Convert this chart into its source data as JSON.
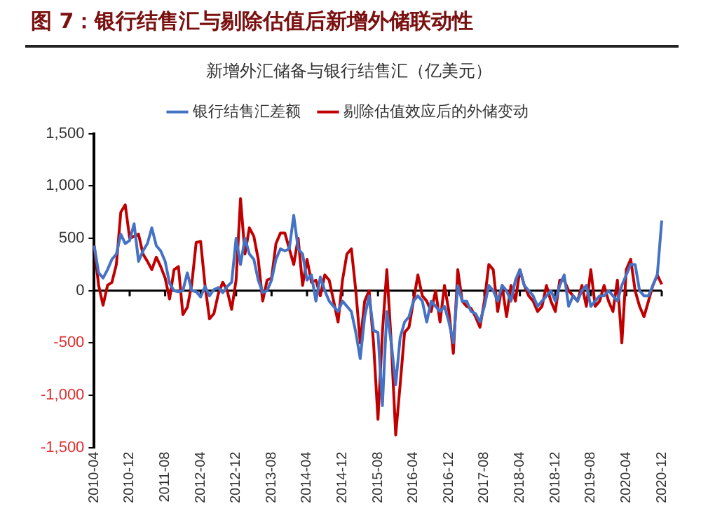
{
  "chart_data": {
    "type": "line",
    "title": "图 7：银行结售汇与剔除估值后新增外储联动性",
    "subtitle": "新增外汇储备与银行结售汇（亿美元）",
    "categories": [
      "2010-04",
      null,
      null,
      null,
      null,
      null,
      null,
      null,
      "2010-12",
      null,
      null,
      null,
      null,
      null,
      null,
      null,
      "2011-08",
      null,
      null,
      null,
      null,
      null,
      null,
      null,
      "2012-04",
      null,
      null,
      null,
      null,
      null,
      null,
      null,
      "2012-12",
      null,
      null,
      null,
      null,
      null,
      null,
      null,
      "2013-08",
      null,
      null,
      null,
      null,
      null,
      null,
      null,
      "2014-04",
      null,
      null,
      null,
      null,
      null,
      null,
      null,
      "2014-12",
      null,
      null,
      null,
      null,
      null,
      null,
      null,
      "2015-08",
      null,
      null,
      null,
      null,
      null,
      null,
      null,
      "2016-04",
      null,
      null,
      null,
      null,
      null,
      null,
      null,
      "2016-12",
      null,
      null,
      null,
      null,
      null,
      null,
      null,
      "2017-08",
      null,
      null,
      null,
      null,
      null,
      null,
      null,
      "2018-04",
      null,
      null,
      null,
      null,
      null,
      null,
      null,
      "2018-12",
      null,
      null,
      null,
      null,
      null,
      null,
      null,
      "2019-08",
      null,
      null,
      null,
      null,
      null,
      null,
      null,
      "2020-04",
      null,
      null,
      null,
      null,
      null,
      null,
      null,
      "2020-12"
    ],
    "series": [
      {
        "name": "银行结售汇差额",
        "color": "#4472c4",
        "values": [
          430,
          170,
          120,
          200,
          300,
          350,
          540,
          450,
          480,
          640,
          280,
          380,
          450,
          600,
          430,
          380,
          280,
          70,
          0,
          -10,
          0,
          170,
          0,
          -10,
          -60,
          40,
          -50,
          10,
          30,
          -20,
          40,
          80,
          500,
          250,
          500,
          350,
          300,
          100,
          -20,
          0,
          100,
          300,
          400,
          380,
          400,
          720,
          400,
          350,
          100,
          150,
          -100,
          130,
          0,
          -100,
          -150,
          -200,
          -100,
          -150,
          -200,
          -400,
          -650,
          -250,
          -50,
          -380,
          -400,
          -1100,
          -200,
          -500,
          -900,
          -450,
          -300,
          -250,
          -100,
          -50,
          -100,
          -300,
          -100,
          -150,
          -200,
          -150,
          -300,
          -500,
          50,
          -100,
          -100,
          -200,
          -220,
          -300,
          -150,
          50,
          0,
          -100,
          50,
          0,
          -100,
          100,
          200,
          50,
          0,
          -50,
          -150,
          -100,
          -50,
          0,
          -100,
          50,
          150,
          -150,
          -50,
          -100,
          0,
          50,
          -150,
          -100,
          -50,
          -50,
          0,
          -50,
          -100,
          50,
          150,
          250,
          250,
          0,
          -50,
          -50,
          50,
          150,
          670
        ]
      },
      {
        "name": "剔除估值效应后的外储变动",
        "color": "#c00000",
        "values": [
          430,
          50,
          -140,
          50,
          80,
          250,
          750,
          820,
          500,
          520,
          540,
          350,
          280,
          200,
          320,
          230,
          120,
          -80,
          200,
          230,
          -230,
          -160,
          60,
          460,
          470,
          50,
          -270,
          -220,
          -30,
          80,
          0,
          -180,
          100,
          880,
          350,
          600,
          520,
          300,
          -100,
          100,
          120,
          450,
          550,
          550,
          400,
          250,
          500,
          50,
          300,
          80,
          100,
          -50,
          150,
          100,
          -100,
          -300,
          100,
          350,
          400,
          0,
          -500,
          -100,
          0,
          -500,
          -1230,
          -400,
          200,
          -500,
          -1380,
          -900,
          -400,
          -350,
          -100,
          150,
          -50,
          -100,
          -200,
          0,
          -300,
          50,
          -200,
          -600,
          200,
          -100,
          -150,
          -170,
          -250,
          -350,
          -100,
          250,
          200,
          -200,
          50,
          -250,
          50,
          -100,
          200,
          50,
          -50,
          -100,
          -200,
          -150,
          50,
          -100,
          -200,
          100,
          100,
          0,
          -50,
          -100,
          50,
          -150,
          200,
          -150,
          -100,
          50,
          -100,
          -200,
          100,
          -500,
          200,
          300,
          0,
          -150,
          -250,
          -100,
          50,
          150,
          60
        ]
      }
    ],
    "ylim": [
      -1500,
      1500
    ],
    "yticks": [
      {
        "value": -1500,
        "label": "-1,500"
      },
      {
        "value": -1000,
        "label": "-1,000"
      },
      {
        "value": -500,
        "label": "-500"
      },
      0,
      {
        "value": 500,
        "label": "500"
      },
      {
        "value": 1000,
        "label": "1,000"
      },
      {
        "value": 1500,
        "label": "1,500"
      }
    ],
    "ref_lines": [
      {
        "axis": "y",
        "value": 0,
        "color": "#000000"
      }
    ],
    "grid": false,
    "legend": "top",
    "marker": "none",
    "line_style": "solid"
  }
}
